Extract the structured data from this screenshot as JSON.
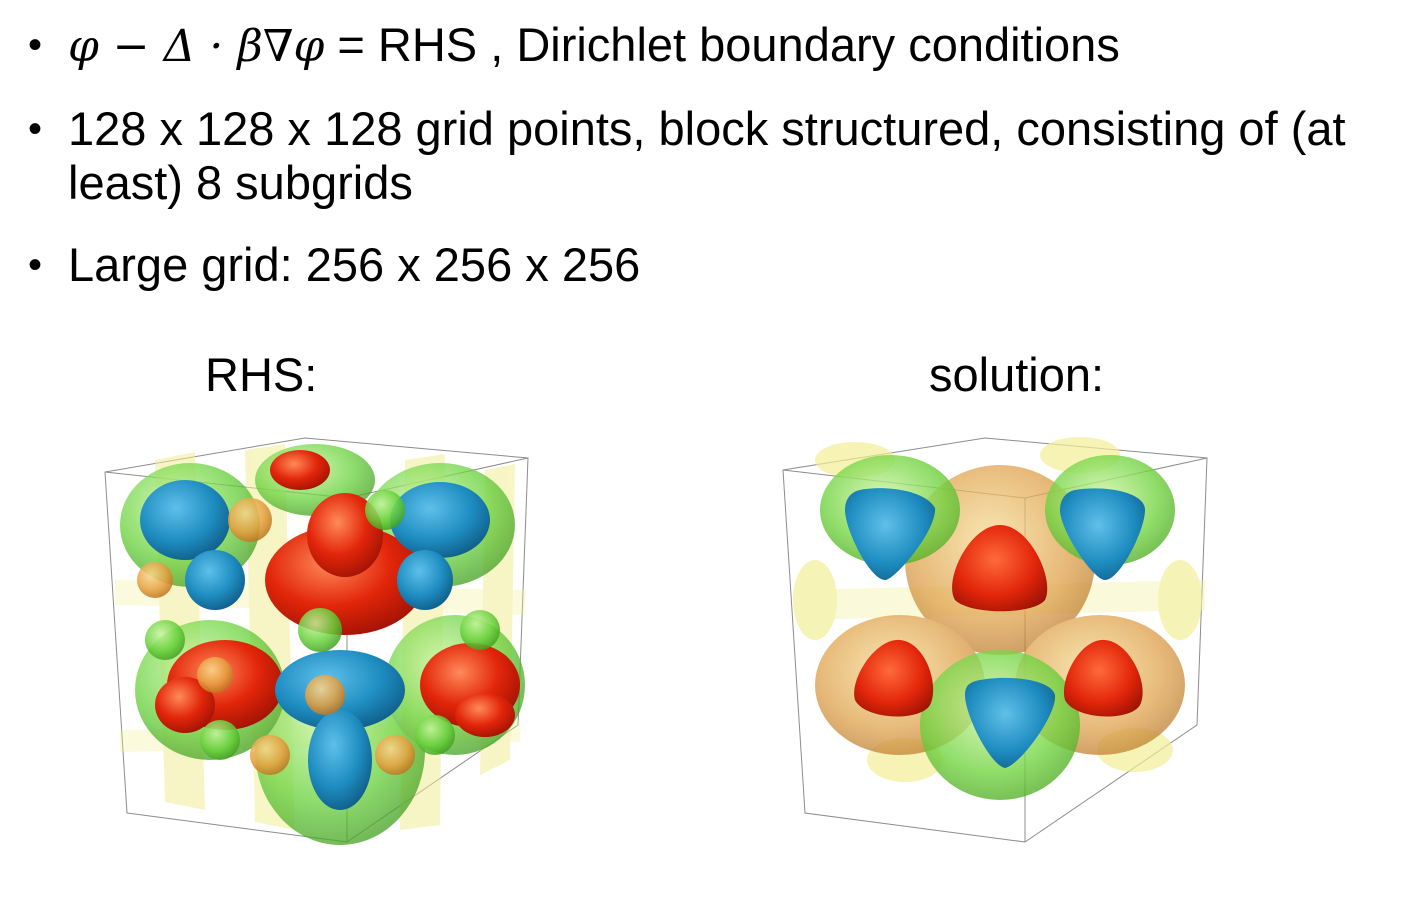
{
  "bullets": [
    {
      "math": "φ − Δ · β∇φ",
      "text": " = RHS , Dirichlet boundary conditions"
    },
    {
      "math": "",
      "text": "128 x 128 x 128 grid points, block structured, consisting of (at least) 8 subgrids"
    },
    {
      "math": "",
      "text": "Large grid: 256 x 256 x 256"
    }
  ],
  "bullet_symbol": "•",
  "captions": {
    "left": "RHS:",
    "right": "solution:"
  },
  "colors": {
    "red": "#e2260a",
    "blue": "#1e8cc0",
    "green": "#69d23c",
    "yellow": "#f2ee96",
    "orange": "#e8a040",
    "box_line": "#8c8c8c"
  }
}
